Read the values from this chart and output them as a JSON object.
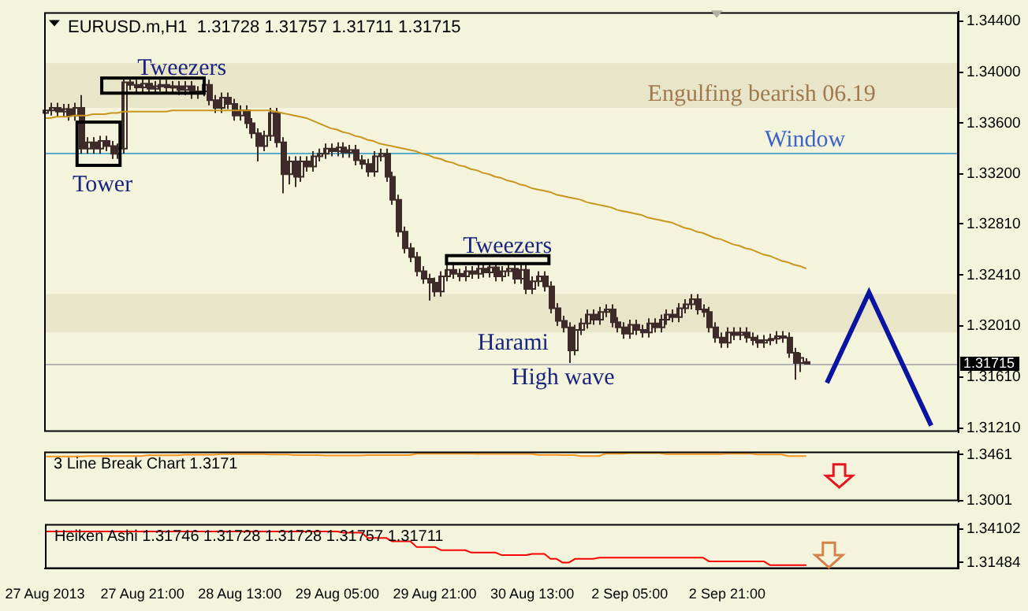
{
  "chart_data": [
    {
      "type": "candlestick",
      "title": "EURUSD.m,H1  1.31728 1.31757 1.31711 1.31715",
      "color": "#3d2b29",
      "tick_labels": "y",
      "categories": [
        null,
        null,
        null,
        null,
        null,
        null,
        null,
        null,
        null,
        null,
        null,
        null,
        null,
        null,
        null,
        null,
        null,
        null,
        null,
        null,
        null,
        null,
        null,
        null,
        null,
        null,
        null,
        null,
        null,
        null,
        null,
        null,
        null,
        null,
        null,
        null,
        null,
        null,
        null,
        null,
        null,
        null,
        null,
        null,
        null,
        null,
        null,
        null,
        null,
        null,
        null,
        null,
        null,
        null,
        null,
        null,
        null,
        null,
        null,
        null,
        null,
        null,
        null,
        null,
        null,
        null,
        null,
        null,
        null,
        null,
        null,
        null,
        null,
        null,
        null,
        null,
        null,
        null,
        null,
        null,
        null,
        null,
        null,
        null,
        null,
        null,
        null,
        null,
        null,
        null,
        null,
        null,
        null,
        null,
        null,
        null,
        null,
        null,
        null,
        null,
        null,
        null,
        null,
        null,
        null,
        null,
        null,
        null,
        null,
        null,
        null,
        null,
        null,
        null,
        null,
        null,
        null,
        null,
        null,
        null,
        null,
        null,
        null,
        null,
        null,
        null,
        null,
        null,
        null,
        null,
        null,
        null,
        null,
        null,
        null,
        null,
        null,
        null,
        null,
        null,
        null,
        null,
        null,
        null,
        null,
        null,
        null,
        null,
        null,
        null,
        null
      ],
      "ohlc": [
        [
          1.3368,
          1.3374,
          1.3364,
          1.337
        ],
        [
          1.337,
          1.3376,
          1.3366,
          1.3372
        ],
        [
          1.3372,
          1.3376,
          1.3365,
          1.3369
        ],
        [
          1.3369,
          1.3375,
          1.3365,
          1.3371
        ],
        [
          1.3371,
          1.3375,
          1.3362,
          1.3366
        ],
        [
          1.3366,
          1.3376,
          1.3362,
          1.3372
        ],
        [
          1.3372,
          1.3382,
          1.3336,
          1.334
        ],
        [
          1.334,
          1.3349,
          1.3336,
          1.3345
        ],
        [
          1.3345,
          1.3349,
          1.3336,
          1.334
        ],
        [
          1.334,
          1.335,
          1.3336,
          1.3346
        ],
        [
          1.3346,
          1.335,
          1.3338,
          1.3342
        ],
        [
          1.3342,
          1.3346,
          1.3332,
          1.3336
        ],
        [
          1.3336,
          1.3344,
          1.3332,
          1.334
        ],
        [
          1.334,
          1.3396,
          1.3336,
          1.3392
        ],
        [
          1.3392,
          1.3396,
          1.3386,
          1.339
        ],
        [
          1.339,
          1.3394,
          1.3384,
          1.3388
        ],
        [
          1.3388,
          1.3395,
          1.3384,
          1.3391
        ],
        [
          1.3391,
          1.3395,
          1.3383,
          1.3387
        ],
        [
          1.3387,
          1.3393,
          1.3383,
          1.3389
        ],
        [
          1.3389,
          1.3394,
          1.3385,
          1.339
        ],
        [
          1.339,
          1.3394,
          1.3384,
          1.3388
        ],
        [
          1.3388,
          1.3393,
          1.3384,
          1.3389
        ],
        [
          1.3389,
          1.3393,
          1.3382,
          1.3386
        ],
        [
          1.3386,
          1.3393,
          1.3382,
          1.3389
        ],
        [
          1.3389,
          1.3393,
          1.3379,
          1.3383
        ],
        [
          1.3383,
          1.3389,
          1.3379,
          1.3385
        ],
        [
          1.3385,
          1.3394,
          1.3381,
          1.339
        ],
        [
          1.339,
          1.3394,
          1.3374,
          1.3378
        ],
        [
          1.3378,
          1.3382,
          1.3368,
          1.3372
        ],
        [
          1.3372,
          1.3384,
          1.3368,
          1.338
        ],
        [
          1.338,
          1.3384,
          1.3371,
          1.3375
        ],
        [
          1.3375,
          1.3379,
          1.3362,
          1.3366
        ],
        [
          1.3366,
          1.3374,
          1.3362,
          1.337
        ],
        [
          1.337,
          1.3374,
          1.3356,
          1.336
        ],
        [
          1.336,
          1.3364,
          1.3348,
          1.3352
        ],
        [
          1.3352,
          1.3356,
          1.333,
          1.3342
        ],
        [
          1.3342,
          1.3354,
          1.3338,
          1.335
        ],
        [
          1.335,
          1.3372,
          1.3346,
          1.3368
        ],
        [
          1.3368,
          1.3372,
          1.3341,
          1.3345
        ],
        [
          1.3345,
          1.3349,
          1.3305,
          1.332
        ],
        [
          1.332,
          1.3334,
          1.3312,
          1.333
        ],
        [
          1.333,
          1.3334,
          1.331,
          1.3318
        ],
        [
          1.3318,
          1.3334,
          1.3314,
          1.333
        ],
        [
          1.333,
          1.3334,
          1.3322,
          1.3326
        ],
        [
          1.3326,
          1.3338,
          1.3322,
          1.3334
        ],
        [
          1.3334,
          1.334,
          1.333,
          1.3336
        ],
        [
          1.3336,
          1.3344,
          1.3332,
          1.334
        ],
        [
          1.334,
          1.3344,
          1.3334,
          1.3338
        ],
        [
          1.3338,
          1.3345,
          1.3334,
          1.3341
        ],
        [
          1.3341,
          1.3345,
          1.3333,
          1.3337
        ],
        [
          1.3337,
          1.3343,
          1.3333,
          1.3339
        ],
        [
          1.3339,
          1.3343,
          1.3327,
          1.3331
        ],
        [
          1.3331,
          1.3335,
          1.3324,
          1.3328
        ],
        [
          1.3328,
          1.3332,
          1.3318,
          1.3322
        ],
        [
          1.3322,
          1.3338,
          1.3318,
          1.3334
        ],
        [
          1.3334,
          1.334,
          1.333,
          1.3336
        ],
        [
          1.3336,
          1.334,
          1.3314,
          1.3318
        ],
        [
          1.3318,
          1.3322,
          1.3296,
          1.33
        ],
        [
          1.33,
          1.3304,
          1.3271,
          1.3275
        ],
        [
          1.3275,
          1.3279,
          1.3258,
          1.3262
        ],
        [
          1.3262,
          1.3266,
          1.3251,
          1.3255
        ],
        [
          1.3255,
          1.3259,
          1.324,
          1.3244
        ],
        [
          1.3244,
          1.3248,
          1.3234,
          1.3238
        ],
        [
          1.3238,
          1.3242,
          1.3221,
          1.3235
        ],
        [
          1.3235,
          1.3239,
          1.3224,
          1.3228
        ],
        [
          1.3228,
          1.3244,
          1.3224,
          1.324
        ],
        [
          1.324,
          1.3249,
          1.3236,
          1.3245
        ],
        [
          1.3245,
          1.3249,
          1.3238,
          1.3242
        ],
        [
          1.3242,
          1.3246,
          1.3236,
          1.324
        ],
        [
          1.324,
          1.3248,
          1.3236,
          1.3244
        ],
        [
          1.3244,
          1.3248,
          1.3238,
          1.3242
        ],
        [
          1.3242,
          1.325,
          1.3238,
          1.3246
        ],
        [
          1.3246,
          1.325,
          1.3239,
          1.3243
        ],
        [
          1.3243,
          1.3251,
          1.3239,
          1.3247
        ],
        [
          1.3247,
          1.3251,
          1.3236,
          1.324
        ],
        [
          1.324,
          1.3248,
          1.3236,
          1.3244
        ],
        [
          1.3244,
          1.325,
          1.324,
          1.3246
        ],
        [
          1.3246,
          1.325,
          1.3234,
          1.3238
        ],
        [
          1.3238,
          1.3249,
          1.3234,
          1.3245
        ],
        [
          1.3245,
          1.3249,
          1.3226,
          1.323
        ],
        [
          1.323,
          1.324,
          1.3226,
          1.3236
        ],
        [
          1.3236,
          1.3244,
          1.3232,
          1.324
        ],
        [
          1.324,
          1.3244,
          1.3228,
          1.3232
        ],
        [
          1.3232,
          1.3236,
          1.3211,
          1.3215
        ],
        [
          1.3215,
          1.3219,
          1.3201,
          1.3205
        ],
        [
          1.3205,
          1.3209,
          1.3196,
          1.32
        ],
        [
          1.32,
          1.3204,
          1.3172,
          1.3182
        ],
        [
          1.3182,
          1.3202,
          1.3178,
          1.3198
        ],
        [
          1.3198,
          1.3207,
          1.3194,
          1.3203
        ],
        [
          1.3203,
          1.3214,
          1.3199,
          1.321
        ],
        [
          1.321,
          1.3214,
          1.3202,
          1.3206
        ],
        [
          1.3206,
          1.3216,
          1.3202,
          1.3212
        ],
        [
          1.3212,
          1.3218,
          1.3208,
          1.3214
        ],
        [
          1.3214,
          1.3218,
          1.32,
          1.3204
        ],
        [
          1.3204,
          1.3208,
          1.3196,
          1.32
        ],
        [
          1.32,
          1.3204,
          1.3191,
          1.3195
        ],
        [
          1.3195,
          1.3206,
          1.3191,
          1.3202
        ],
        [
          1.3202,
          1.3206,
          1.3194,
          1.3198
        ],
        [
          1.3198,
          1.3202,
          1.3192,
          1.3196
        ],
        [
          1.3196,
          1.3207,
          1.3192,
          1.3203
        ],
        [
          1.3203,
          1.3207,
          1.3196,
          1.32
        ],
        [
          1.32,
          1.321,
          1.3196,
          1.3206
        ],
        [
          1.3206,
          1.3214,
          1.3202,
          1.321
        ],
        [
          1.321,
          1.3214,
          1.3204,
          1.3208
        ],
        [
          1.3208,
          1.3219,
          1.3204,
          1.3215
        ],
        [
          1.3215,
          1.3222,
          1.3211,
          1.3218
        ],
        [
          1.3218,
          1.3226,
          1.3214,
          1.3222
        ],
        [
          1.3222,
          1.3226,
          1.321,
          1.3214
        ],
        [
          1.3214,
          1.3218,
          1.3208,
          1.3212
        ],
        [
          1.3212,
          1.3216,
          1.3196,
          1.32
        ],
        [
          1.32,
          1.3204,
          1.3188,
          1.3192
        ],
        [
          1.3192,
          1.3196,
          1.3184,
          1.3188
        ],
        [
          1.3188,
          1.32,
          1.3184,
          1.3196
        ],
        [
          1.3196,
          1.32,
          1.319,
          1.3194
        ],
        [
          1.3194,
          1.32,
          1.319,
          1.3196
        ],
        [
          1.3196,
          1.32,
          1.3188,
          1.3192
        ],
        [
          1.3192,
          1.3196,
          1.3186,
          1.319
        ],
        [
          1.319,
          1.3194,
          1.3184,
          1.3188
        ],
        [
          1.3188,
          1.3194,
          1.3184,
          1.319
        ],
        [
          1.319,
          1.3195,
          1.3186,
          1.3191
        ],
        [
          1.3191,
          1.3197,
          1.3187,
          1.3193
        ],
        [
          1.3193,
          1.3197,
          1.3188,
          1.3192
        ],
        [
          1.3192,
          1.3196,
          1.3176,
          1.318
        ],
        [
          1.318,
          1.3184,
          1.3159,
          1.3172
        ],
        [
          1.3172,
          1.318,
          1.3165,
          1.3176
        ],
        [
          1.31728,
          1.31757,
          1.31711,
          1.31715
        ],
        null,
        null,
        null,
        null,
        null,
        null,
        null,
        null,
        null,
        null,
        null,
        null,
        null,
        null,
        null,
        null,
        null,
        null,
        null,
        null,
        null,
        null,
        null,
        null,
        null
      ],
      "series": [
        {
          "type": "line",
          "color": "#c8961e",
          "values": [
            1.3364,
            1.3364,
            1.3365,
            1.3365,
            1.3365,
            1.3366,
            1.3366,
            1.3366,
            1.3367,
            1.3367,
            1.3367,
            1.3368,
            1.3368,
            1.3369,
            1.3369,
            1.3369,
            1.3369,
            1.3369,
            1.3369,
            1.3369,
            1.3369,
            1.337,
            1.337,
            1.337,
            1.337,
            1.337,
            1.337,
            1.337,
            1.337,
            1.337,
            1.337,
            1.337,
            1.337,
            1.337,
            1.337,
            1.337,
            1.337,
            1.337,
            1.3369,
            1.3368,
            1.3367,
            1.3366,
            1.3365,
            1.3364,
            1.3362,
            1.336,
            1.3358,
            1.3356,
            1.3355,
            1.3353,
            1.3352,
            1.335,
            1.3349,
            1.3347,
            1.3346,
            1.3344,
            1.3343,
            1.3342,
            1.3341,
            1.334,
            1.3339,
            1.3338,
            1.3336,
            1.3335,
            1.3333,
            1.3332,
            1.333,
            1.3329,
            1.3327,
            1.3326,
            1.3324,
            1.3323,
            1.3321,
            1.332,
            1.3318,
            1.3317,
            1.3315,
            1.3314,
            1.3312,
            1.3311,
            1.3309,
            1.3308,
            1.3307,
            1.3306,
            1.3304,
            1.3303,
            1.3302,
            1.3301,
            1.33,
            1.3298,
            1.3297,
            1.3296,
            1.3295,
            1.3294,
            1.3292,
            1.3291,
            1.329,
            1.3289,
            1.3288,
            1.3286,
            1.3285,
            1.3284,
            1.3283,
            1.3282,
            1.328,
            1.3278,
            1.3277,
            1.3275,
            1.3274,
            1.3272,
            1.327,
            1.3269,
            1.3267,
            1.3265,
            1.3264,
            1.3262,
            1.3261,
            1.3259,
            1.3257,
            1.3256,
            1.3254,
            1.3252,
            1.3251,
            1.3249,
            1.3248,
            1.3246,
            null,
            null,
            null,
            null,
            null,
            null,
            null,
            null,
            null,
            null,
            null,
            null,
            null,
            null,
            null,
            null,
            null,
            null,
            null,
            null,
            null,
            null,
            null,
            null,
            null
          ]
        }
      ],
      "ylim": [
        1.3118,
        1.3447
      ],
      "yticks": [
        {
          "value": 1.344,
          "label": "1.34400"
        },
        {
          "value": 1.34,
          "label": "1.34000"
        },
        {
          "value": 1.336,
          "label": "1.33600"
        },
        {
          "value": 1.332,
          "label": "1.33200"
        },
        {
          "value": 1.3281,
          "label": "1.32810"
        },
        {
          "value": 1.3241,
          "label": "1.32410"
        },
        {
          "value": 1.3201,
          "label": "1.32010"
        },
        {
          "value": 1.3161,
          "label": "1.31610"
        },
        {
          "value": 1.3121,
          "label": "1.31210"
        }
      ],
      "ref_lines": [
        {
          "axis": "y",
          "value": 1.3337,
          "label": "Window",
          "color": "#5aaecc"
        },
        {
          "axis": "y",
          "value": 1.31715,
          "label": "1.31715",
          "color": "#b4b4b4"
        }
      ],
      "bands": [
        {
          "axis": "y",
          "from": 1.3372,
          "to": 1.3407,
          "color": "#e8e5c9"
        },
        {
          "axis": "y",
          "from": 1.3196,
          "to": 1.3226,
          "color": "#e8e5c9"
        }
      ],
      "annotations": [
        "Tweezers",
        "Tower",
        "Tweezers",
        "Harami",
        "High wave",
        "Engulfing bearish 06.19"
      ]
    },
    {
      "type": "line",
      "tick_labels": "y",
      "categories": [
        null,
        null,
        null,
        null,
        null,
        null,
        null,
        null,
        null,
        null,
        null,
        null,
        null,
        null,
        null,
        null,
        null,
        null,
        null,
        null,
        null,
        null,
        null,
        null,
        null,
        null,
        null,
        null,
        null,
        null,
        null,
        null,
        null,
        null,
        null,
        null,
        null,
        null,
        null,
        null,
        null,
        null,
        null,
        null,
        null,
        null,
        null,
        null,
        null,
        null,
        null,
        null,
        null,
        null,
        null,
        null,
        null,
        null,
        null,
        null,
        null,
        null,
        null,
        null,
        null,
        null,
        null,
        null,
        null,
        null,
        null,
        null,
        null,
        null,
        null,
        null,
        null,
        null,
        null,
        null,
        null,
        null,
        null,
        null,
        null,
        null,
        null,
        null,
        null,
        null,
        null,
        null,
        null,
        null,
        null,
        null,
        null,
        null,
        null,
        null,
        null,
        null,
        null,
        null,
        null,
        null,
        null,
        null,
        null,
        null,
        null,
        null,
        null,
        null,
        null,
        null,
        null,
        null,
        null,
        null,
        null,
        null,
        null,
        null,
        null,
        null,
        null,
        null,
        null,
        null,
        null,
        null,
        null,
        null,
        null,
        null,
        null,
        null,
        null,
        null,
        null,
        null,
        null,
        null,
        null,
        null,
        null,
        null,
        null,
        null,
        null
      ],
      "series": [
        {
          "type": "line",
          "name": "3 Line Break Chart 1.3171",
          "color": "#f7941d",
          "values": [
            1.3442,
            1.3442,
            1.3442,
            1.3442,
            1.3442,
            1.3442,
            1.3442,
            1.3446,
            1.3446,
            1.3446,
            1.3446,
            1.3446,
            1.3446,
            1.3446,
            1.3446,
            1.3446,
            1.3446,
            1.3453,
            1.3453,
            1.3453,
            1.3453,
            1.3453,
            1.3453,
            1.3459,
            1.3459,
            1.3459,
            1.3459,
            1.3459,
            1.3459,
            1.3465,
            1.3465,
            1.3465,
            1.3465,
            1.3465,
            1.3465,
            1.3465,
            1.3465,
            1.3461,
            1.3461,
            1.3461,
            1.3461,
            1.3455,
            1.3455,
            1.3455,
            1.3455,
            1.3455,
            1.3451,
            1.3451,
            1.3451,
            1.3451,
            1.3451,
            1.3451,
            1.3451,
            1.3455,
            1.3455,
            1.3455,
            1.3455,
            1.3455,
            1.3455,
            1.3455,
            1.3455,
            1.3469,
            1.3469,
            1.3469,
            1.3469,
            1.3469,
            1.3469,
            1.3469,
            1.3469,
            1.3469,
            1.3469,
            1.3467,
            1.3467,
            1.3467,
            1.3467,
            1.3467,
            1.3467,
            1.3467,
            1.3467,
            1.3467,
            1.3467,
            1.3457,
            1.3457,
            1.3457,
            1.3457,
            1.3455,
            1.3455,
            1.3455,
            1.3446,
            1.3446,
            1.3446,
            1.3446,
            1.3469,
            1.3469,
            1.3469,
            1.3469,
            1.3476,
            1.3476,
            1.3476,
            1.3476,
            1.3476,
            1.3476,
            1.3465,
            1.3465,
            1.3465,
            1.3465,
            1.3465,
            1.3465,
            1.3465,
            1.3465,
            1.3465,
            1.3465,
            1.3469,
            1.3469,
            1.3469,
            1.3469,
            1.3469,
            1.3461,
            1.3461,
            1.3461,
            1.3461,
            1.3461,
            1.3446,
            1.3446,
            1.3446,
            1.3446,
            null,
            null,
            null,
            null,
            null,
            null,
            null,
            null,
            null,
            null,
            null,
            null,
            null,
            null,
            null,
            null,
            null,
            null,
            null,
            null,
            null,
            null,
            null,
            null,
            null
          ]
        }
      ],
      "ylim": [
        1.2993,
        1.3492
      ],
      "yticks": [
        1.3461,
        1.3001
      ]
    },
    {
      "type": "line",
      "categories": [
        "27 Aug 2013",
        null,
        null,
        null,
        null,
        null,
        null,
        null,
        null,
        null,
        null,
        null,
        null,
        null,
        null,
        null,
        "27 Aug 21:00",
        null,
        null,
        null,
        null,
        null,
        null,
        null,
        null,
        null,
        null,
        null,
        null,
        null,
        null,
        null,
        "28 Aug 13:00",
        null,
        null,
        null,
        null,
        null,
        null,
        null,
        null,
        null,
        null,
        null,
        null,
        null,
        null,
        null,
        "29 Aug 05:00",
        null,
        null,
        null,
        null,
        null,
        null,
        null,
        null,
        null,
        null,
        null,
        null,
        null,
        null,
        null,
        "29 Aug 21:00",
        null,
        null,
        null,
        null,
        null,
        null,
        null,
        null,
        null,
        null,
        null,
        null,
        null,
        null,
        null,
        "30 Aug 13:00",
        null,
        null,
        null,
        null,
        null,
        null,
        null,
        null,
        null,
        null,
        null,
        null,
        null,
        null,
        null,
        "2 Sep 05:00",
        null,
        null,
        null,
        null,
        null,
        null,
        null,
        null,
        null,
        null,
        null,
        null,
        null,
        null,
        null,
        "2 Sep 21:00",
        null,
        null,
        null,
        null,
        null,
        null,
        null,
        null,
        null,
        null,
        null,
        null,
        null,
        null,
        null,
        null,
        null,
        null,
        null,
        null,
        null,
        null,
        null,
        null,
        null,
        null,
        null,
        null,
        null,
        null,
        null,
        null,
        null,
        null,
        null,
        null,
        null,
        null
      ],
      "series": [
        {
          "type": "line",
          "name": "Heiken Ashi 1.31746 1.31728 1.31728 1.31757 1.31711",
          "color": "#ff0000",
          "values": [
            1.339,
            1.339,
            1.339,
            1.339,
            1.339,
            1.339,
            1.339,
            1.339,
            1.339,
            1.339,
            1.339,
            1.339,
            1.339,
            1.339,
            1.339,
            1.339,
            1.339,
            1.339,
            1.339,
            1.339,
            1.339,
            1.339,
            1.339,
            1.339,
            1.339,
            1.339,
            1.339,
            1.339,
            1.339,
            1.339,
            1.339,
            1.339,
            1.339,
            1.339,
            1.339,
            1.339,
            1.339,
            1.339,
            1.339,
            1.339,
            1.339,
            1.339,
            1.339,
            1.339,
            1.339,
            1.339,
            1.339,
            1.339,
            1.339,
            1.3381,
            1.3381,
            1.3381,
            1.3381,
            1.334,
            1.334,
            1.334,
            1.334,
            1.3313,
            1.3313,
            1.3313,
            1.3313,
            1.327,
            1.327,
            1.327,
            1.327,
            1.3245,
            1.3245,
            1.3245,
            1.3245,
            1.3245,
            1.3226,
            1.3226,
            1.3226,
            1.3226,
            1.3226,
            1.3206,
            1.3206,
            1.3206,
            1.3206,
            1.3206,
            1.3216,
            1.3216,
            1.3216,
            1.3177,
            1.3177,
            1.3148,
            1.3148,
            1.3177,
            1.3177,
            1.3177,
            1.3177,
            1.3187,
            1.3187,
            1.3187,
            1.3187,
            1.3187,
            1.3187,
            1.3187,
            1.3187,
            1.3187,
            1.3187,
            1.3187,
            1.3187,
            1.3187,
            1.3187,
            1.3187,
            1.3187,
            1.3187,
            1.3187,
            1.3158,
            1.3158,
            1.3158,
            1.3158,
            1.3158,
            1.3158,
            1.3158,
            1.3158,
            1.3158,
            1.3158,
            1.3129,
            1.3129,
            1.3129,
            1.3129,
            1.3129,
            1.3129,
            1.3129,
            null,
            null,
            null,
            null,
            null,
            null,
            null,
            null,
            null,
            null,
            null,
            null,
            null,
            null,
            null,
            null,
            null,
            null,
            null,
            null,
            null,
            null,
            null,
            null,
            null
          ]
        }
      ],
      "ylim": [
        1.31,
        1.3449
      ],
      "yticks": [
        1.34102,
        1.31484
      ]
    }
  ]
}
